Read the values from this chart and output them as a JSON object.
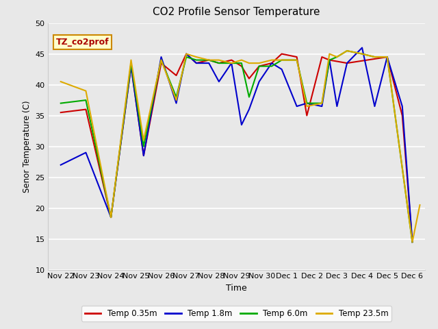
{
  "title": "CO2 Profile Sensor Temperature",
  "ylabel": "Senor Temperature (C)",
  "xlabel": "Time",
  "ylim": [
    10,
    50
  ],
  "background_color": "#e8e8e8",
  "fig_facecolor": "#e8e8e8",
  "annotation_text": "TZ_co2prof",
  "annotation_bg": "#ffffcc",
  "annotation_fg": "#aa0000",
  "annotation_border": "#cc8800",
  "xtick_labels": [
    "Nov 22",
    "Nov 23",
    "Nov 24",
    "Nov 25",
    "Nov 26",
    "Nov 27",
    "Nov 28",
    "Nov 29",
    "Nov 30",
    "Dec 1",
    "Dec 2",
    "Dec 3",
    "Dec 4",
    "Dec 5",
    "Dec 6"
  ],
  "yticks": [
    10,
    15,
    20,
    25,
    30,
    35,
    40,
    45,
    50
  ],
  "series": [
    {
      "name": "Temp 0.35m",
      "color": "#cc0000",
      "x": [
        0,
        1,
        2,
        2.8,
        3.3,
        4.0,
        4.6,
        5.0,
        5.4,
        5.9,
        6.3,
        6.8,
        7.2,
        7.5,
        7.9,
        8.4,
        8.8,
        9.4,
        9.8,
        10.4,
        10.7,
        11.4,
        13.0,
        13.6,
        14.0
      ],
      "y": [
        35.5,
        36.0,
        18.5,
        43.0,
        28.5,
        43.5,
        41.5,
        45.0,
        43.5,
        44.0,
        43.5,
        44.0,
        43.0,
        41.0,
        43.0,
        43.5,
        45.0,
        44.5,
        35.0,
        44.5,
        44.0,
        43.5,
        44.5,
        35.0,
        14.5
      ]
    },
    {
      "name": "Temp 1.8m",
      "color": "#0000cc",
      "x": [
        0,
        1,
        2,
        2.8,
        3.3,
        4.0,
        4.6,
        5.0,
        5.4,
        5.9,
        6.3,
        6.8,
        7.2,
        7.5,
        7.9,
        8.4,
        8.8,
        9.4,
        9.8,
        10.4,
        10.7,
        11.0,
        11.4,
        12.0,
        12.5,
        13.0,
        13.6,
        14.0
      ],
      "y": [
        27.0,
        29.0,
        18.5,
        43.0,
        28.5,
        44.5,
        37.0,
        45.0,
        43.5,
        43.5,
        40.5,
        43.5,
        33.5,
        36.0,
        40.5,
        43.5,
        42.5,
        36.5,
        37.0,
        36.5,
        44.0,
        36.5,
        43.5,
        46.0,
        36.5,
        44.5,
        36.5,
        14.5
      ]
    },
    {
      "name": "Temp 6.0m",
      "color": "#00aa00",
      "x": [
        0,
        1,
        2,
        2.8,
        3.3,
        4.0,
        4.6,
        5.0,
        5.4,
        5.9,
        6.3,
        6.8,
        7.2,
        7.5,
        7.9,
        8.4,
        8.8,
        9.4,
        9.8,
        10.4,
        10.7,
        11.0,
        11.4,
        12.0,
        12.5,
        13.0,
        14.0
      ],
      "y": [
        37.0,
        37.5,
        18.5,
        43.5,
        30.0,
        44.0,
        38.0,
        44.5,
        44.0,
        44.0,
        43.5,
        43.5,
        43.5,
        38.0,
        43.0,
        43.0,
        44.0,
        44.0,
        37.0,
        37.0,
        44.0,
        44.5,
        45.5,
        45.0,
        44.5,
        44.5,
        14.5
      ]
    },
    {
      "name": "Temp 23.5m",
      "color": "#ddaa00",
      "x": [
        0,
        1,
        2,
        2.8,
        3.3,
        4.0,
        4.6,
        5.0,
        5.4,
        5.9,
        6.3,
        6.8,
        7.2,
        7.5,
        7.9,
        8.4,
        8.8,
        9.4,
        9.8,
        10.4,
        10.7,
        11.0,
        11.4,
        12.0,
        12.5,
        13.0,
        14.0,
        14.3
      ],
      "y": [
        40.5,
        39.0,
        18.5,
        44.0,
        31.0,
        44.0,
        37.5,
        45.0,
        44.5,
        44.0,
        44.0,
        43.5,
        44.0,
        43.5,
        43.5,
        44.0,
        44.0,
        44.0,
        36.5,
        37.0,
        45.0,
        44.5,
        45.5,
        45.0,
        44.5,
        44.5,
        14.5,
        20.5
      ]
    }
  ]
}
